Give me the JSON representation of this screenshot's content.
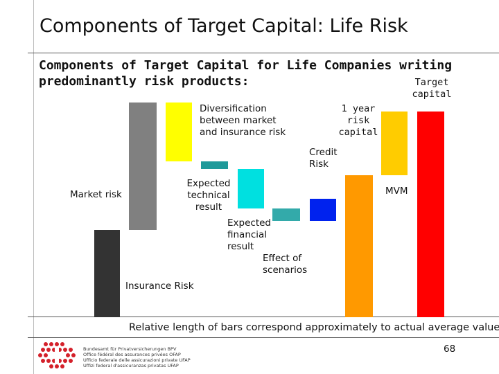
{
  "slide_title": "Components of Target Capital: Life Risk",
  "chart_heading": "Components of Target Capital for Life Companies writing predominantly risk products:",
  "footnote": "Relative length of bars correspond approximately to actual average values",
  "page_number": "68",
  "organization": [
    "Bundesamt für Privatversicherungen BPV",
    "Office fédéral des assurances privées OFAP",
    "Ufficio federale delle assicurazioni private UFAP",
    "Uffizi federal d'assicuranzas privatas UFAP"
  ],
  "chart_data": {
    "type": "waterfall",
    "note": "Relative bar lengths only; no numeric axis shown",
    "bars": [
      {
        "label": "Insurance Risk",
        "color": "#333333",
        "start": 0,
        "end": 126
      },
      {
        "label": "Market risk",
        "color": "#808080",
        "start": 126,
        "end": 310
      },
      {
        "label": "Diversification between market and insurance risk",
        "color": "#ffff00",
        "start": 225,
        "end": 310
      },
      {
        "label": "Expected technical result",
        "color": "#1f9a9a",
        "start": 225,
        "end": 214
      },
      {
        "label": "Expected financial result",
        "color": "#00e0e0",
        "start": 214,
        "end": 157
      },
      {
        "label": "Effect of scenarios",
        "color": "#33aaaa",
        "start": 157,
        "end": 139
      },
      {
        "label": "Credit Risk",
        "color": "#0022ee",
        "start": 139,
        "end": 171
      },
      {
        "label": "1 year risk capital",
        "color": "#ff9900",
        "start": 0,
        "end": 205
      },
      {
        "label": "MVM",
        "color": "#ffcc00",
        "start": 205,
        "end": 297
      },
      {
        "label": "Target capital",
        "color": "#ff0000",
        "start": 0,
        "end": 297
      }
    ]
  },
  "labels": {
    "target_capital": "Target\ncapital",
    "one_year": "1 year\nrisk\ncapital",
    "diversification": "Diversification\nbetween market\nand insurance risk",
    "credit_risk": "Credit\nRisk",
    "expected_technical": "Expected\ntechnical\nresult",
    "mvm": "MVM",
    "market_risk": "Market risk",
    "expected_financial": "Expected\nfinancial\nresult",
    "effect_scenarios": "Effect of\nscenarios",
    "insurance_risk": "Insurance Risk"
  }
}
